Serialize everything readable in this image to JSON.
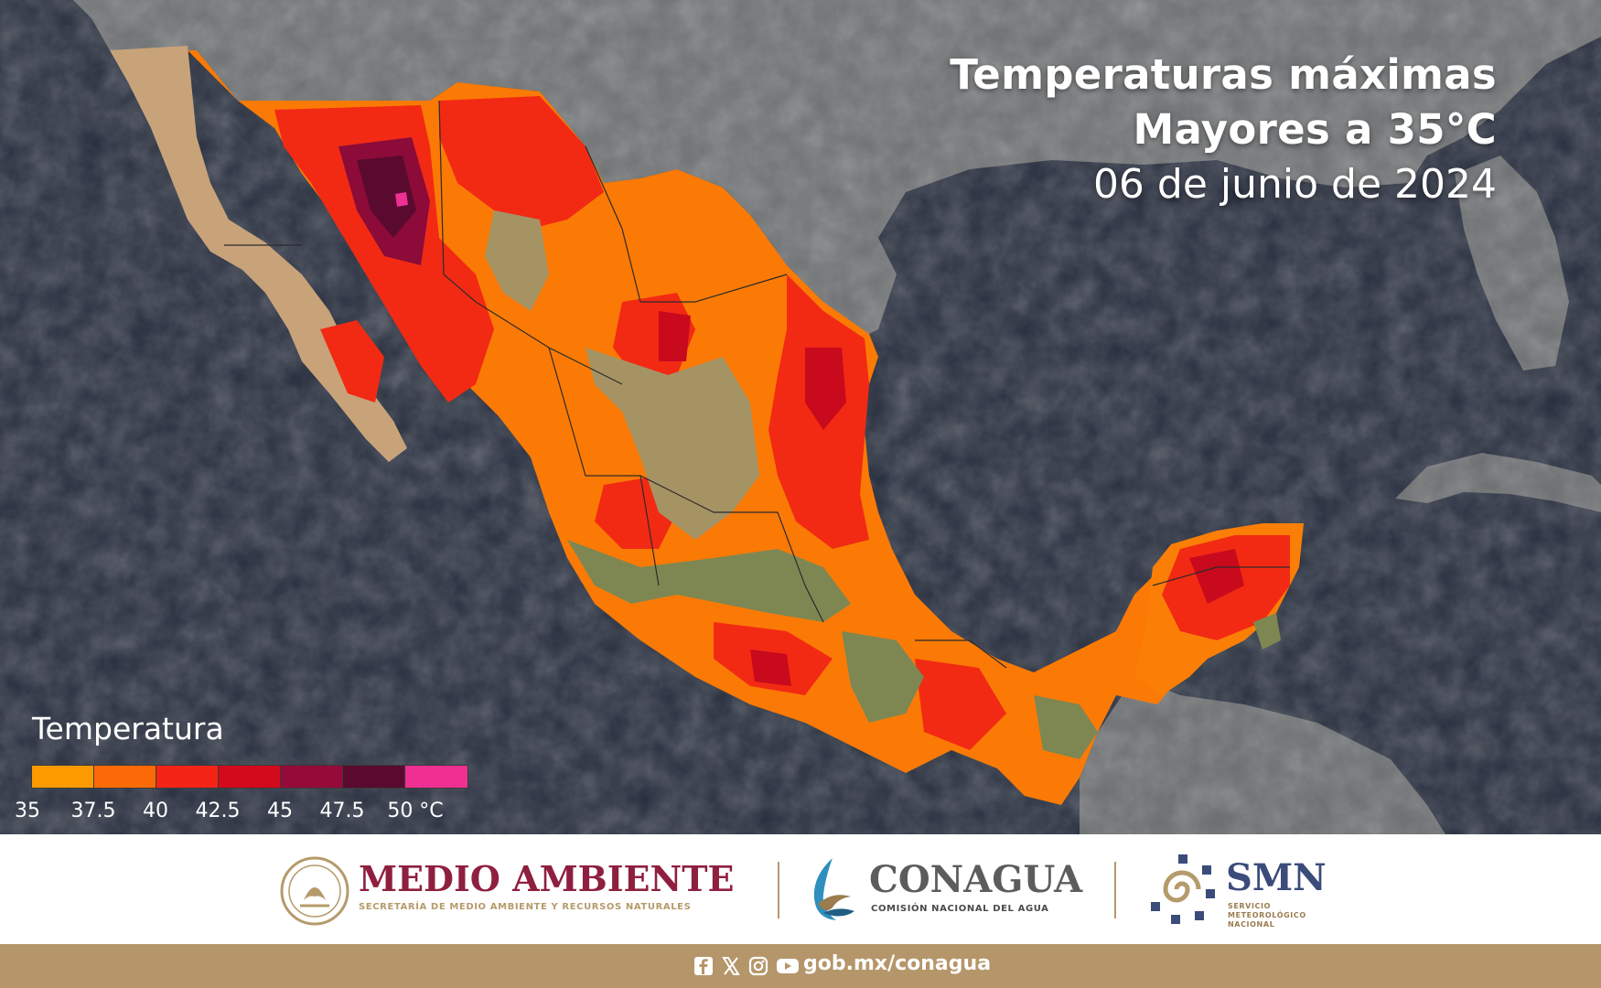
{
  "map": {
    "title_line1": "Temperaturas máximas",
    "title_line2": "Mayores a 35°C",
    "date": "06 de junio de 2024"
  },
  "legend": {
    "title": "Temperatura",
    "colors": [
      "#fd9a00",
      "#fb6a07",
      "#f42417",
      "#d3091c",
      "#960a3a",
      "#5a0a2e",
      "#ef2f92"
    ],
    "ticks": [
      "35",
      "37.5",
      "40",
      "42.5",
      "45",
      "47.5",
      "50 °C"
    ]
  },
  "logos": {
    "medio_ambiente": {
      "name": "MEDIO AMBIENTE",
      "subtitle": "SECRETARÍA DE MEDIO AMBIENTE Y RECURSOS NATURALES",
      "color": "#8f1f3f"
    },
    "conagua": {
      "name": "CONAGUA",
      "subtitle": "COMISIÓN NACIONAL DEL AGUA",
      "color": "#5c5c5c"
    },
    "smn": {
      "name": "SMN",
      "subtitle_lines": [
        "SERVICIO",
        "METEOROLÓGICO",
        "NACIONAL"
      ],
      "color": "#3b4b7a"
    }
  },
  "footer": {
    "social_icons": [
      "facebook-icon",
      "x-icon",
      "instagram-icon",
      "youtube-icon"
    ],
    "url": "gob.mx/conagua",
    "background": "#b5966a"
  }
}
